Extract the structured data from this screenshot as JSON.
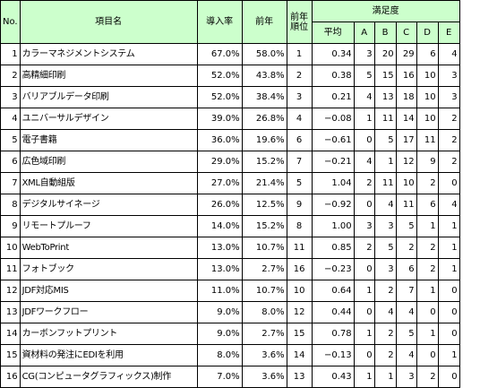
{
  "headers": {
    "no": "No.",
    "item": "項目名",
    "rate": "導入率",
    "prev": "前年",
    "prev_rank": "前年順位",
    "satisfaction": "満足度",
    "avg": "平均",
    "a": "A",
    "b": "B",
    "c": "C",
    "d": "D",
    "e": "E"
  },
  "rows": [
    {
      "no": "1",
      "name": "カラーマネジメントシステム",
      "rate": "67.0%",
      "prev": "58.0%",
      "rank": "1",
      "avg": "0.34",
      "a": "3",
      "b": "20",
      "c": "29",
      "d": "6",
      "e": "4"
    },
    {
      "no": "2",
      "name": "高精細印刷",
      "rate": "52.0%",
      "prev": "43.8%",
      "rank": "2",
      "avg": "0.38",
      "a": "5",
      "b": "15",
      "c": "16",
      "d": "10",
      "e": "3"
    },
    {
      "no": "3",
      "name": "バリアブルデータ印刷",
      "rate": "52.0%",
      "prev": "38.4%",
      "rank": "3",
      "avg": "0.21",
      "a": "4",
      "b": "13",
      "c": "18",
      "d": "10",
      "e": "3"
    },
    {
      "no": "4",
      "name": "ユニバーサルデザイン",
      "rate": "39.0%",
      "prev": "26.8%",
      "rank": "4",
      "avg": "−0.08",
      "a": "1",
      "b": "11",
      "c": "14",
      "d": "10",
      "e": "2"
    },
    {
      "no": "5",
      "name": "電子書籍",
      "rate": "36.0%",
      "prev": "19.6%",
      "rank": "6",
      "avg": "−0.61",
      "a": "0",
      "b": "5",
      "c": "17",
      "d": "11",
      "e": "2"
    },
    {
      "no": "6",
      "name": "広色域印刷",
      "rate": "29.0%",
      "prev": "15.2%",
      "rank": "7",
      "avg": "−0.21",
      "a": "4",
      "b": "1",
      "c": "12",
      "d": "9",
      "e": "2"
    },
    {
      "no": "7",
      "name": "XML自動組版",
      "rate": "27.0%",
      "prev": "21.4%",
      "rank": "5",
      "avg": "1.04",
      "a": "2",
      "b": "11",
      "c": "10",
      "d": "2",
      "e": "0"
    },
    {
      "no": "8",
      "name": "デジタルサイネージ",
      "rate": "26.0%",
      "prev": "12.5%",
      "rank": "9",
      "avg": "−0.92",
      "a": "0",
      "b": "4",
      "c": "11",
      "d": "6",
      "e": "4"
    },
    {
      "no": "9",
      "name": "リモートプルーフ",
      "rate": "14.0%",
      "prev": "15.2%",
      "rank": "8",
      "avg": "1.00",
      "a": "3",
      "b": "3",
      "c": "5",
      "d": "1",
      "e": "1"
    },
    {
      "no": "10",
      "name": "WebToPrint",
      "rate": "13.0%",
      "prev": "10.7%",
      "rank": "11",
      "avg": "0.85",
      "a": "2",
      "b": "5",
      "c": "2",
      "d": "2",
      "e": "1"
    },
    {
      "no": "11",
      "name": "フォトブック",
      "rate": "13.0%",
      "prev": "2.7%",
      "rank": "16",
      "avg": "−0.23",
      "a": "0",
      "b": "3",
      "c": "6",
      "d": "2",
      "e": "1"
    },
    {
      "no": "12",
      "name": "JDF対応MIS",
      "rate": "11.0%",
      "prev": "10.7%",
      "rank": "10",
      "avg": "0.64",
      "a": "1",
      "b": "2",
      "c": "7",
      "d": "1",
      "e": "0"
    },
    {
      "no": "13",
      "name": "JDFワークフロー",
      "rate": "9.0%",
      "prev": "8.0%",
      "rank": "12",
      "avg": "0.44",
      "a": "0",
      "b": "4",
      "c": "4",
      "d": "0",
      "e": "0"
    },
    {
      "no": "14",
      "name": "カーボンフットプリント",
      "rate": "9.0%",
      "prev": "2.7%",
      "rank": "15",
      "avg": "0.78",
      "a": "1",
      "b": "2",
      "c": "5",
      "d": "1",
      "e": "0"
    },
    {
      "no": "15",
      "name": "資材料の発注にEDIを利用",
      "rate": "8.0%",
      "prev": "3.6%",
      "rank": "14",
      "avg": "−0.13",
      "a": "0",
      "b": "2",
      "c": "4",
      "d": "0",
      "e": "1"
    },
    {
      "no": "16",
      "name": "CG(コンピュータグラフィックス)制作",
      "rate": "7.0%",
      "prev": "3.6%",
      "rank": "13",
      "avg": "0.43",
      "a": "1",
      "b": "1",
      "c": "3",
      "d": "2",
      "e": "0"
    }
  ],
  "colors": {
    "header_bg": "#ccffcc",
    "grid": "#000000",
    "background": "#ffffff"
  }
}
